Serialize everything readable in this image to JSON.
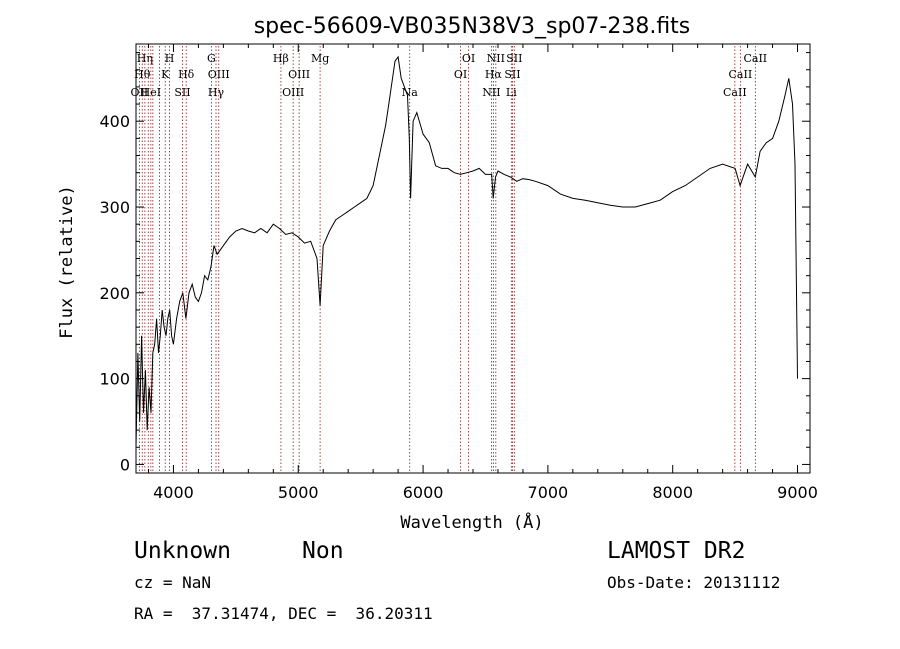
{
  "chart_data": {
    "type": "line",
    "title": "spec-56609-VB035N38V3_sp07-238.fits",
    "xlabel": "Wavelength (Å)",
    "ylabel": "Flux (relative)",
    "xlim": [
      3700,
      9100
    ],
    "ylim": [
      -10,
      490
    ],
    "xticks": [
      4000,
      5000,
      6000,
      7000,
      8000,
      9000
    ],
    "yticks": [
      0,
      100,
      200,
      300,
      400
    ],
    "grid": false,
    "line_color": "#000000",
    "marker_color": "#8b1a1a",
    "series": [
      {
        "x": [
          3700,
          3715,
          3730,
          3745,
          3760,
          3775,
          3790,
          3805,
          3820,
          3835,
          3850,
          3865,
          3880,
          3895,
          3910,
          3925,
          3940,
          3955,
          3970,
          3985,
          4000,
          4025,
          4050,
          4075,
          4100,
          4125,
          4150,
          4175,
          4200,
          4225,
          4250,
          4275,
          4300,
          4325,
          4350,
          4375,
          4400,
          4450,
          4500,
          4550,
          4600,
          4650,
          4700,
          4750,
          4800,
          4850,
          4900,
          4950,
          5000,
          5050,
          5100,
          5150,
          5175,
          5200,
          5250,
          5300,
          5350,
          5400,
          5450,
          5500,
          5550,
          5600,
          5650,
          5700,
          5725,
          5750,
          5775,
          5800,
          5825,
          5850,
          5875,
          5890,
          5900,
          5920,
          5950,
          6000,
          6050,
          6100,
          6150,
          6200,
          6250,
          6300,
          6350,
          6400,
          6450,
          6500,
          6550,
          6562,
          6580,
          6600,
          6650,
          6700,
          6750,
          6800,
          6850,
          6900,
          7000,
          7100,
          7200,
          7300,
          7400,
          7500,
          7600,
          7700,
          7800,
          7900,
          8000,
          8100,
          8200,
          8300,
          8400,
          8500,
          8540,
          8600,
          8662,
          8700,
          8750,
          8800,
          8850,
          8900,
          8930,
          8960,
          8980,
          9000
        ],
        "y": [
          20,
          130,
          50,
          150,
          60,
          110,
          40,
          90,
          60,
          130,
          140,
          170,
          130,
          150,
          180,
          160,
          150,
          170,
          180,
          150,
          140,
          170,
          190,
          200,
          170,
          200,
          210,
          195,
          190,
          200,
          220,
          215,
          230,
          255,
          245,
          250,
          255,
          265,
          272,
          275,
          272,
          270,
          275,
          270,
          280,
          275,
          268,
          270,
          265,
          258,
          260,
          240,
          185,
          255,
          272,
          285,
          290,
          295,
          300,
          305,
          310,
          325,
          360,
          395,
          420,
          445,
          470,
          475,
          450,
          440,
          430,
          380,
          310,
          400,
          410,
          385,
          375,
          348,
          345,
          345,
          340,
          338,
          340,
          342,
          345,
          338,
          338,
          310,
          335,
          342,
          338,
          335,
          330,
          333,
          332,
          330,
          325,
          315,
          310,
          308,
          305,
          302,
          300,
          300,
          304,
          308,
          318,
          325,
          335,
          345,
          350,
          345,
          325,
          350,
          335,
          365,
          375,
          380,
          400,
          430,
          450,
          420,
          350,
          100
        ]
      }
    ],
    "line_markers": [
      {
        "x": 3727,
        "label": "OII",
        "row": 3
      },
      {
        "x": 3750,
        "label": "Hθ",
        "row": 2
      },
      {
        "x": 3771,
        "label": "Hη",
        "row": 1
      },
      {
        "x": 3798,
        "label": "",
        "row": 0
      },
      {
        "x": 3819,
        "label": "HeI",
        "row": 3
      },
      {
        "x": 3835,
        "label": "",
        "row": 0
      },
      {
        "x": 3889,
        "label": "",
        "row": 0
      },
      {
        "x": 3934,
        "label": "K",
        "row": 2
      },
      {
        "x": 3969,
        "label": "H",
        "row": 1
      },
      {
        "x": 4072,
        "label": "SII",
        "row": 3
      },
      {
        "x": 4102,
        "label": "Hδ",
        "row": 2
      },
      {
        "x": 4304,
        "label": "G",
        "row": 1
      },
      {
        "x": 4341,
        "label": "Hγ",
        "row": 3
      },
      {
        "x": 4363,
        "label": "OIII",
        "row": 2
      },
      {
        "x": 4861,
        "label": "Hβ",
        "row": 1
      },
      {
        "x": 4959,
        "label": "OIII",
        "row": 3
      },
      {
        "x": 5007,
        "label": "OIII",
        "row": 2
      },
      {
        "x": 5175,
        "label": "Mg",
        "row": 1
      },
      {
        "x": 5893,
        "label": "Na",
        "row": 3
      },
      {
        "x": 6300,
        "label": "OI",
        "row": 2
      },
      {
        "x": 6364,
        "label": "OI",
        "row": 1
      },
      {
        "x": 6548,
        "label": "NII",
        "row": 3
      },
      {
        "x": 6563,
        "label": "Hα",
        "row": 2
      },
      {
        "x": 6583,
        "label": "NII",
        "row": 1
      },
      {
        "x": 6707,
        "label": "Li",
        "row": 3
      },
      {
        "x": 6716,
        "label": "SII",
        "row": 2
      },
      {
        "x": 6731,
        "label": "SII",
        "row": 1
      },
      {
        "x": 8498,
        "label": "CaII",
        "row": 3
      },
      {
        "x": 8542,
        "label": "CaII",
        "row": 2
      },
      {
        "x": 8662,
        "label": "CaII",
        "row": 1
      }
    ]
  },
  "info": {
    "class": "Unknown",
    "subclass": "Non",
    "cz": "cz = NaN",
    "coords": "RA =  37.31474, DEC =  36.20311",
    "survey": "LAMOST DR2",
    "obs_date": "Obs-Date: 20131112"
  }
}
